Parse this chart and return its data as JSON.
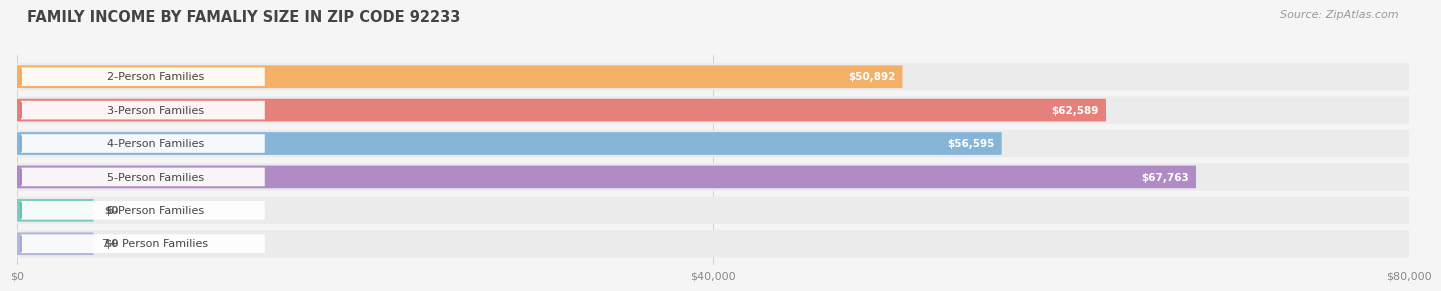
{
  "title": "FAMILY INCOME BY FAMALIY SIZE IN ZIP CODE 92233",
  "source": "Source: ZipAtlas.com",
  "categories": [
    "2-Person Families",
    "3-Person Families",
    "4-Person Families",
    "5-Person Families",
    "6-Person Families",
    "7+ Person Families"
  ],
  "values": [
    50892,
    62589,
    56595,
    67763,
    0,
    0
  ],
  "bar_colors": [
    "#f5a855",
    "#e5736a",
    "#78aed6",
    "#a87ec0",
    "#5cbfb5",
    "#9fa8d5"
  ],
  "bar_bg_color": "#ebebeb",
  "row_bg_color": "#f0f0f0",
  "label_bg_color": "#ffffff",
  "value_label_color": "#ffffff",
  "value_zero_color": "#666666",
  "xlim": [
    0,
    80000
  ],
  "xtick_labels": [
    "$0",
    "$40,000",
    "$80,000"
  ],
  "title_fontsize": 10.5,
  "source_fontsize": 8,
  "bar_label_fontsize": 8,
  "value_fontsize": 7.5,
  "tick_fontsize": 8,
  "background_color": "#f5f5f5",
  "plot_bg_color": "#f8f8f8"
}
